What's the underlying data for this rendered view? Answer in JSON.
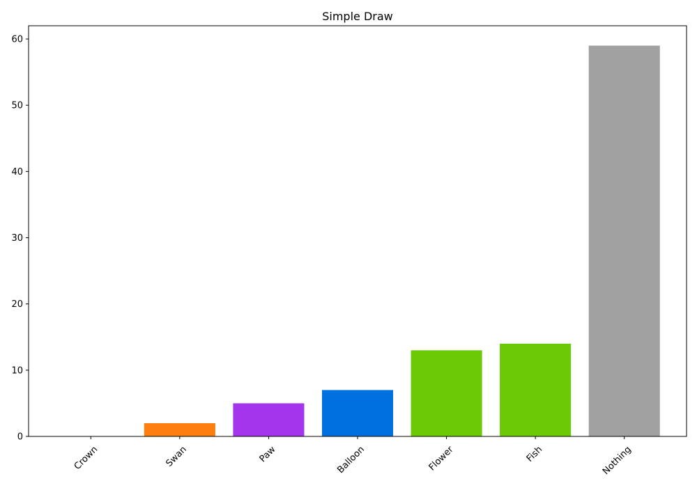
{
  "chart_data": {
    "type": "bar",
    "title": "Simple Draw",
    "xlabel": "",
    "ylabel": "",
    "categories": [
      "Crown",
      "Swan",
      "Paw",
      "Balloon",
      "Flower",
      "Fish",
      "Nothing"
    ],
    "values": [
      0,
      2,
      5,
      7,
      13,
      14,
      59
    ],
    "colors": [
      "#ffffff",
      "#ff7f0e",
      "#a435ed",
      "#0070e0",
      "#6bc906",
      "#6bc906",
      "#a1a1a1"
    ],
    "ylim": [
      0,
      62
    ],
    "yticks": [
      0,
      10,
      20,
      30,
      40,
      50,
      60
    ],
    "grid": false,
    "legend": "none"
  }
}
